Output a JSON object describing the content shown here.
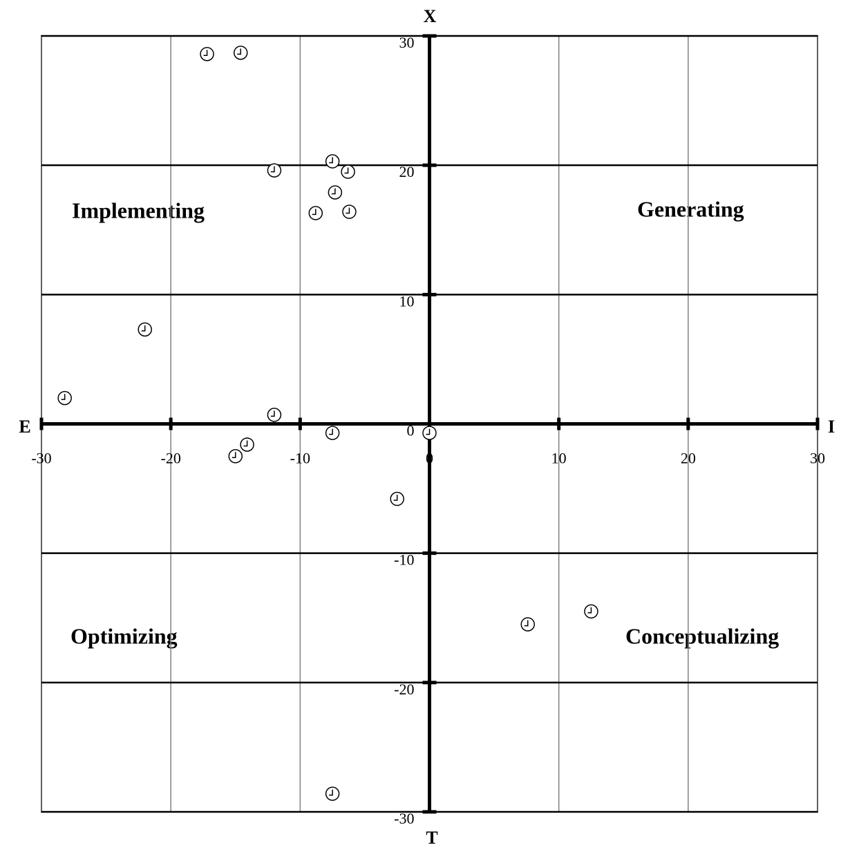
{
  "chart_data": {
    "type": "scatter",
    "axis_labels": {
      "top": "X",
      "bottom": "T",
      "left": "E",
      "right": "I"
    },
    "quadrant_labels": [
      "Implementing",
      "Generating",
      "Optimizing",
      "Conceptualizing"
    ],
    "x": [
      -17.2,
      -14.6,
      -12.0,
      -7.5,
      -6.3,
      -7.3,
      -8.8,
      -6.2,
      -22.0,
      -28.2,
      -12.0,
      -7.5,
      0.0,
      -14.1,
      -15.0,
      -2.5,
      7.6,
      12.5,
      -7.5
    ],
    "values": [
      28.6,
      28.7,
      19.6,
      20.3,
      19.5,
      17.9,
      16.3,
      16.4,
      7.3,
      2.0,
      0.7,
      -0.7,
      -0.7,
      -1.6,
      -2.5,
      -5.8,
      -15.5,
      -14.5,
      -28.6
    ],
    "xlim": [
      -30,
      30
    ],
    "ylim": [
      -30,
      30
    ],
    "xticks": [
      -30,
      -20,
      -10,
      0,
      10,
      20,
      30
    ],
    "yticks": [
      30,
      20,
      10,
      0,
      -10,
      -20,
      -30
    ],
    "grid": true,
    "color": "#000000",
    "vertical_grid_color": "#808080",
    "horizontal_grid_color": "#000000"
  }
}
